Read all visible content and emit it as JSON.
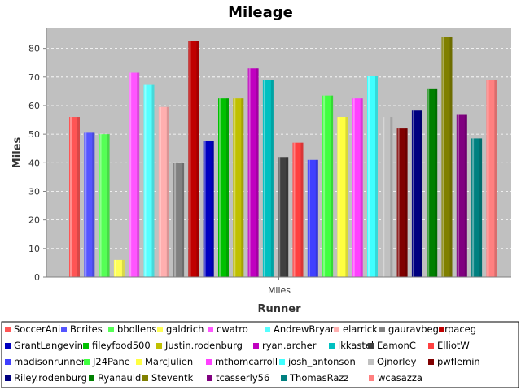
{
  "chart_data": {
    "type": "bar",
    "title": "Mileage",
    "xlabel": "Runner",
    "ylabel": "Miles",
    "categories": [
      "Miles"
    ],
    "ylim": [
      0,
      87
    ],
    "yticks": [
      0,
      10,
      20,
      30,
      40,
      50,
      60,
      70,
      80
    ],
    "grid": true,
    "legend_position": "bottom",
    "plot_background": "#c0c0c0",
    "series": [
      {
        "name": "SoccerAni",
        "values": [
          56
        ],
        "color": "#ff5555"
      },
      {
        "name": "Bcrites",
        "values": [
          50.5
        ],
        "color": "#5555ff"
      },
      {
        "name": "bbollens",
        "values": [
          50
        ],
        "color": "#55ff55"
      },
      {
        "name": "galdrich",
        "values": [
          6
        ],
        "color": "#ffff55"
      },
      {
        "name": "cwatro",
        "values": [
          71.5
        ],
        "color": "#ff55ff"
      },
      {
        "name": "AndrewBryan",
        "values": [
          67.5
        ],
        "color": "#55ffff"
      },
      {
        "name": "elarrick",
        "values": [
          59.5
        ],
        "color": "#ffafaf"
      },
      {
        "name": "gauravbegur",
        "values": [
          40
        ],
        "color": "#808080"
      },
      {
        "name": "paceg",
        "values": [
          82.5
        ],
        "color": "#c00000"
      },
      {
        "name": "GrantLangevin",
        "values": [
          47.5
        ],
        "color": "#0000c0"
      },
      {
        "name": "fileyfood500",
        "values": [
          62.5
        ],
        "color": "#00c000"
      },
      {
        "name": "Justin.rodenburg",
        "values": [
          62.5
        ],
        "color": "#c0c000"
      },
      {
        "name": "ryan.archer",
        "values": [
          73
        ],
        "color": "#c000c0"
      },
      {
        "name": "lkkastel",
        "values": [
          69
        ],
        "color": "#00c0c0"
      },
      {
        "name": "EamonC",
        "values": [
          42
        ],
        "color": "#404040"
      },
      {
        "name": "ElliotW",
        "values": [
          47
        ],
        "color": "#ff4040"
      },
      {
        "name": "madisonrunner",
        "values": [
          41
        ],
        "color": "#4040ff"
      },
      {
        "name": "J24Pane",
        "values": [
          63.5
        ],
        "color": "#40ff40"
      },
      {
        "name": "MarcJulien",
        "values": [
          56
        ],
        "color": "#ffff40"
      },
      {
        "name": "mthomcarroll",
        "values": [
          62.5
        ],
        "color": "#ff40ff"
      },
      {
        "name": "josh_antonson",
        "values": [
          70.5
        ],
        "color": "#40ffff"
      },
      {
        "name": "Ojnorley",
        "values": [
          56
        ],
        "color": "#c0c0c0"
      },
      {
        "name": "pwflemin",
        "values": [
          52
        ],
        "color": "#800000"
      },
      {
        "name": "Riley.rodenburg",
        "values": [
          58.5
        ],
        "color": "#000080"
      },
      {
        "name": "Ryanauld",
        "values": [
          66
        ],
        "color": "#008000"
      },
      {
        "name": "Steventk",
        "values": [
          84
        ],
        "color": "#808000"
      },
      {
        "name": "tcasserly56",
        "values": [
          57
        ],
        "color": "#800080"
      },
      {
        "name": "ThomasRazz",
        "values": [
          48.5
        ],
        "color": "#008080"
      },
      {
        "name": "wcasazza",
        "values": [
          69
        ],
        "color": "#ff8080"
      }
    ]
  }
}
